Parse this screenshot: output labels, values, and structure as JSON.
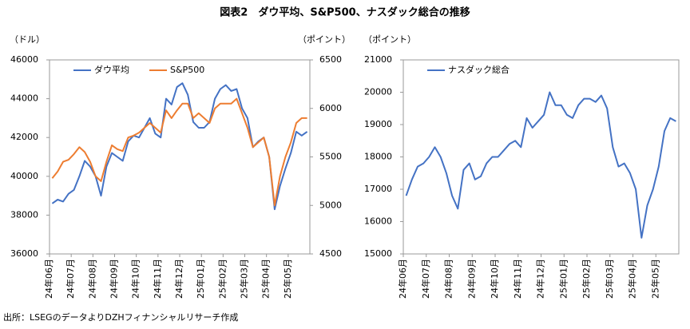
{
  "title": "図表2　ダウ平均、S&P500、ナスダック総合の推移",
  "source": "出所：LSEGのデータよりDZHフィナンシャルリサーチ作成",
  "chart_data": [
    {
      "type": "line",
      "categories": [
        "24年06月",
        "24年07月",
        "24年08月",
        "24年09月",
        "24年10月",
        "24年11月",
        "24年12月",
        "25年01月",
        "25年02月",
        "25年03月",
        "25年04月",
        "25年05月"
      ],
      "y_label": "（ドル）",
      "y2_label": "（ポイント）",
      "ylim": [
        36000,
        46000
      ],
      "yticks": [
        36000,
        38000,
        40000,
        42000,
        44000,
        46000
      ],
      "y2lim": [
        4500,
        6500
      ],
      "y2ticks": [
        4500,
        5000,
        5500,
        6000,
        6500
      ],
      "legend": "upper left",
      "series": [
        {
          "name": "ダウ平均",
          "color": "#4472c4",
          "values": [
            [
              38600,
              38800,
              38700,
              39100
            ],
            [
              39300,
              40000,
              40800,
              40500
            ],
            [
              40000,
              39000,
              40500,
              41200
            ],
            [
              41000,
              40800,
              41800,
              42100
            ],
            [
              42000,
              42500,
              43000,
              42200
            ],
            [
              42000,
              44000,
              43700,
              44600
            ],
            [
              44800,
              44200,
              42800,
              42500
            ],
            [
              42500,
              42800,
              44000,
              44500
            ],
            [
              44700,
              44400,
              44500,
              43500
            ],
            [
              43000,
              41500,
              41800,
              42000
            ],
            [
              41000,
              38300,
              39500,
              40400
            ],
            [
              41200,
              42300,
              42100,
              42300
            ]
          ]
        },
        {
          "name": "S&P500",
          "color": "#ed7d31",
          "axis": "y2",
          "values": [
            [
              5280,
              5350,
              5450,
              5470
            ],
            [
              5530,
              5600,
              5550,
              5450
            ],
            [
              5300,
              5250,
              5450,
              5620
            ],
            [
              5580,
              5560,
              5700,
              5720
            ],
            [
              5750,
              5800,
              5850,
              5800
            ],
            [
              5750,
              5980,
              5900,
              5980
            ],
            [
              6050,
              6050,
              5900,
              5950
            ],
            [
              5900,
              5850,
              6000,
              6050
            ],
            [
              6050,
              6050,
              6100,
              5950
            ],
            [
              5800,
              5600,
              5650,
              5700
            ],
            [
              5500,
              5000,
              5300,
              5500
            ],
            [
              5650,
              5850,
              5900,
              5900
            ]
          ]
        }
      ]
    },
    {
      "type": "line",
      "categories": [
        "24年06月",
        "24年07月",
        "24年08月",
        "24年09月",
        "24年10月",
        "24年11月",
        "24年12月",
        "25年01月",
        "25年02月",
        "25年03月",
        "25年04月",
        "25年05月"
      ],
      "y_label": "（ポイント）",
      "ylim": [
        15000,
        21000
      ],
      "yticks": [
        15000,
        16000,
        17000,
        18000,
        19000,
        20000,
        21000
      ],
      "legend": "upper left",
      "series": [
        {
          "name": "ナスダック総合",
          "color": "#4472c4",
          "values": [
            [
              16800,
              17300,
              17700,
              17800
            ],
            [
              18000,
              18300,
              18000,
              17500
            ],
            [
              16800,
              16400,
              17600,
              17800
            ],
            [
              17300,
              17400,
              17800,
              18000
            ],
            [
              18000,
              18200,
              18400,
              18500
            ],
            [
              18300,
              19200,
              18900,
              19100
            ],
            [
              19300,
              20000,
              19600,
              19600
            ],
            [
              19300,
              19200,
              19600,
              19800
            ],
            [
              19800,
              19700,
              19900,
              19500
            ],
            [
              18300,
              17700,
              17800,
              17500
            ],
            [
              17000,
              15500,
              16500,
              17000
            ],
            [
              17700,
              18800,
              19200,
              19100
            ]
          ]
        }
      ]
    }
  ]
}
